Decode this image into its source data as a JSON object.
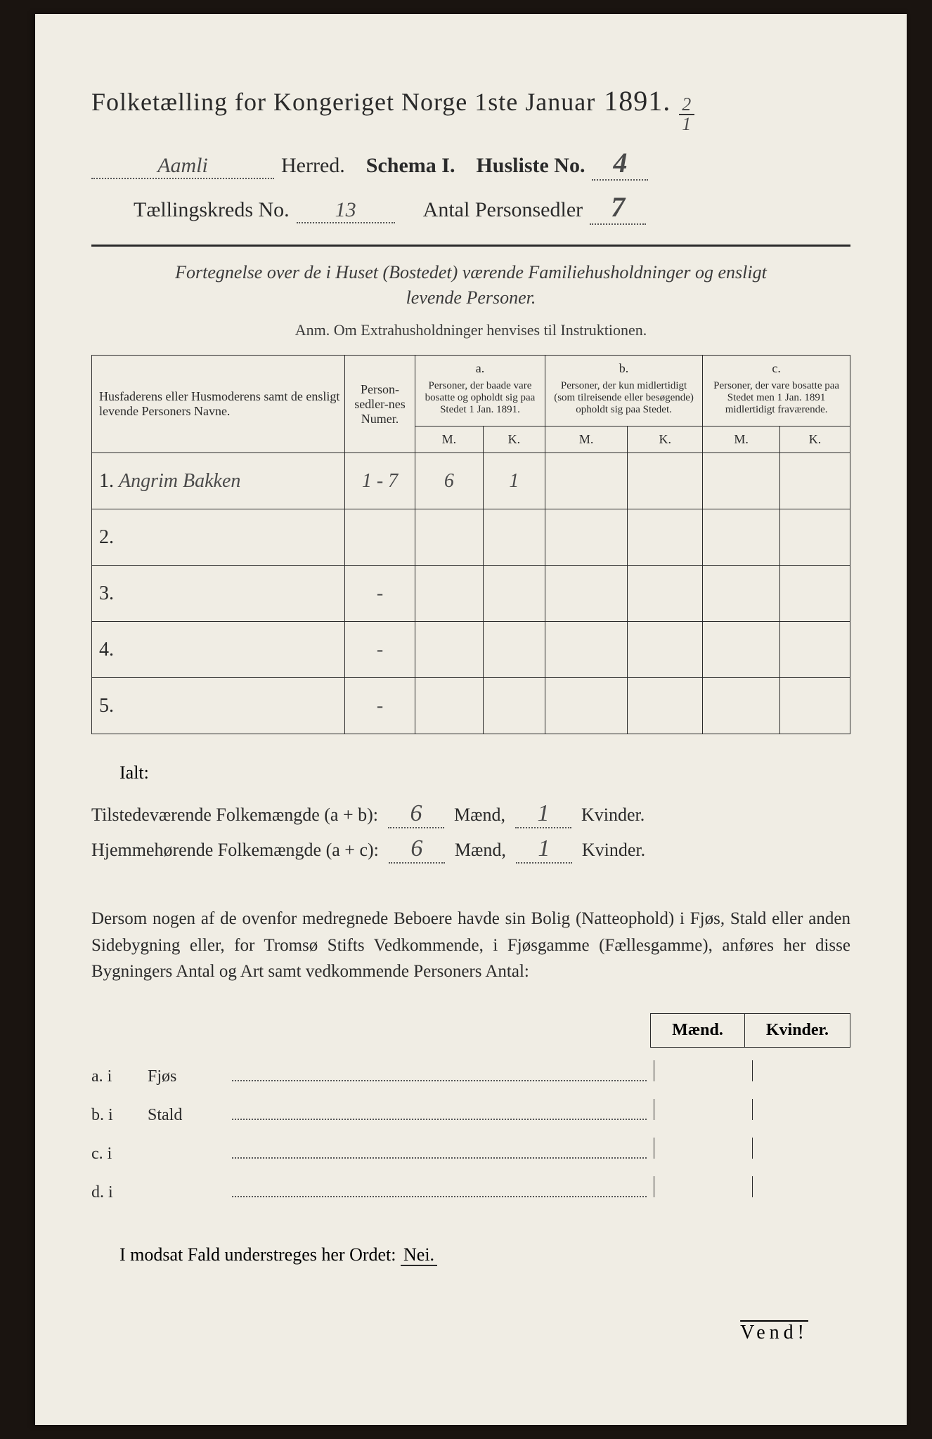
{
  "colors": {
    "paper": "#f0ede4",
    "ink": "#2a2a2a",
    "background": "#1a1410",
    "handwriting": "#4a4a4a"
  },
  "title": {
    "main": "Folketælling for Kongeriget Norge 1ste Januar",
    "year": "1891.",
    "fraction_top": "2",
    "fraction_bot": "1"
  },
  "header": {
    "herred_value": "Aamli",
    "herred_label": "Herred.",
    "schema_label": "Schema I.",
    "husliste_label": "Husliste No.",
    "husliste_value": "4",
    "kreds_label": "Tællingskreds No.",
    "kreds_value": "13",
    "antal_label": "Antal Personsedler",
    "antal_value": "7"
  },
  "subtitle": {
    "line1": "Fortegnelse over de i Huset (Bostedet) værende Familiehusholdninger og ensligt",
    "line2": "levende Personer."
  },
  "anm": "Anm.  Om Extrahusholdninger henvises til Instruktionen.",
  "table": {
    "head": {
      "col1": "Husfaderens eller Husmoderens samt de ensligt levende Personers Navne.",
      "col2": "Person-sedler-nes Numer.",
      "a_label": "a.",
      "a_text": "Personer, der baade vare bosatte og opholdt sig paa Stedet 1 Jan. 1891.",
      "b_label": "b.",
      "b_text": "Personer, der kun midlertidigt (som tilreisende eller besøgende) opholdt sig paa Stedet.",
      "c_label": "c.",
      "c_text": "Personer, der vare bosatte paa Stedet men 1 Jan. 1891 midlertidigt fraværende.",
      "m": "M.",
      "k": "K."
    },
    "rows": [
      {
        "n": "1.",
        "name": "Angrim Bakken",
        "num": "1 - 7",
        "a_m": "6",
        "a_k": "1",
        "b_m": "",
        "b_k": "",
        "c_m": "",
        "c_k": ""
      },
      {
        "n": "2.",
        "name": "",
        "num": "",
        "a_m": "",
        "a_k": "",
        "b_m": "",
        "b_k": "",
        "c_m": "",
        "c_k": ""
      },
      {
        "n": "3.",
        "name": "",
        "num": "-",
        "a_m": "",
        "a_k": "",
        "b_m": "",
        "b_k": "",
        "c_m": "",
        "c_k": ""
      },
      {
        "n": "4.",
        "name": "",
        "num": "-",
        "a_m": "",
        "a_k": "",
        "b_m": "",
        "b_k": "",
        "c_m": "",
        "c_k": ""
      },
      {
        "n": "5.",
        "name": "",
        "num": "-",
        "a_m": "",
        "a_k": "",
        "b_m": "",
        "b_k": "",
        "c_m": "",
        "c_k": ""
      }
    ]
  },
  "ialt_label": "Ialt:",
  "sums": {
    "tilstede_label": "Tilstedeværende Folkemængde (a + b):",
    "tilstede_m": "6",
    "tilstede_k": "1",
    "hjemme_label": "Hjemmehørende Folkemængde (a + c):",
    "hjemme_m": "6",
    "hjemme_k": "1",
    "maend": "Mænd,",
    "kvinder": "Kvinder."
  },
  "para": "Dersom nogen af de ovenfor medregnede Beboere havde sin Bolig (Natteophold) i Fjøs, Stald eller anden Sidebygning eller, for Tromsø Stifts Vedkommende, i Fjøsgamme (Fællesgamme), anføres her disse Bygningers Antal og Art samt vedkommende Personers Antal:",
  "small_table": {
    "maend": "Mænd.",
    "kvinder": "Kvinder."
  },
  "building_rows": [
    {
      "label": "a.  i",
      "name": "Fjøs"
    },
    {
      "label": "b.  i",
      "name": "Stald"
    },
    {
      "label": "c.  i",
      "name": ""
    },
    {
      "label": "d.  i",
      "name": ""
    }
  ],
  "nei": {
    "text": "I modsat Fald understreges her Ordet:",
    "word": "Nei."
  },
  "vend": "Vend!"
}
